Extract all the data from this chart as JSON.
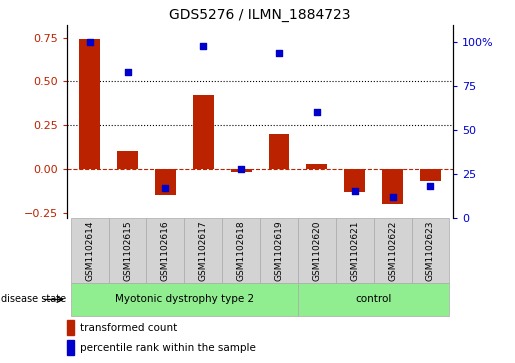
{
  "title": "GDS5276 / ILMN_1884723",
  "categories": [
    "GSM1102614",
    "GSM1102615",
    "GSM1102616",
    "GSM1102617",
    "GSM1102618",
    "GSM1102619",
    "GSM1102620",
    "GSM1102621",
    "GSM1102622",
    "GSM1102623"
  ],
  "bar_values": [
    0.74,
    0.1,
    -0.15,
    0.42,
    -0.02,
    0.2,
    0.03,
    -0.13,
    -0.2,
    -0.07
  ],
  "scatter_values": [
    100,
    83,
    17,
    98,
    28,
    94,
    60,
    15,
    12,
    18
  ],
  "bar_color": "#BB2200",
  "scatter_color": "#0000CC",
  "ylim_left": [
    -0.28,
    0.82
  ],
  "ylim_right": [
    0,
    109.5
  ],
  "yticks_left": [
    -0.25,
    0,
    0.25,
    0.5,
    0.75
  ],
  "yticks_right": [
    0,
    25,
    50,
    75,
    100
  ],
  "ytick_labels_right": [
    "0",
    "25",
    "50",
    "75",
    "100%"
  ],
  "hline_y": [
    0.25,
    0.5
  ],
  "zero_line_color": "#BB2200",
  "legend_bar_label": "transformed count",
  "legend_scatter_label": "percentile rank within the sample",
  "disease_groups": [
    {
      "label": "Myotonic dystrophy type 2",
      "start": 0,
      "end": 5
    },
    {
      "label": "control",
      "start": 6,
      "end": 9
    }
  ],
  "group_color": "#90EE90",
  "label_area_color": "#d3d3d3",
  "label_edge_color": "#aaaaaa"
}
